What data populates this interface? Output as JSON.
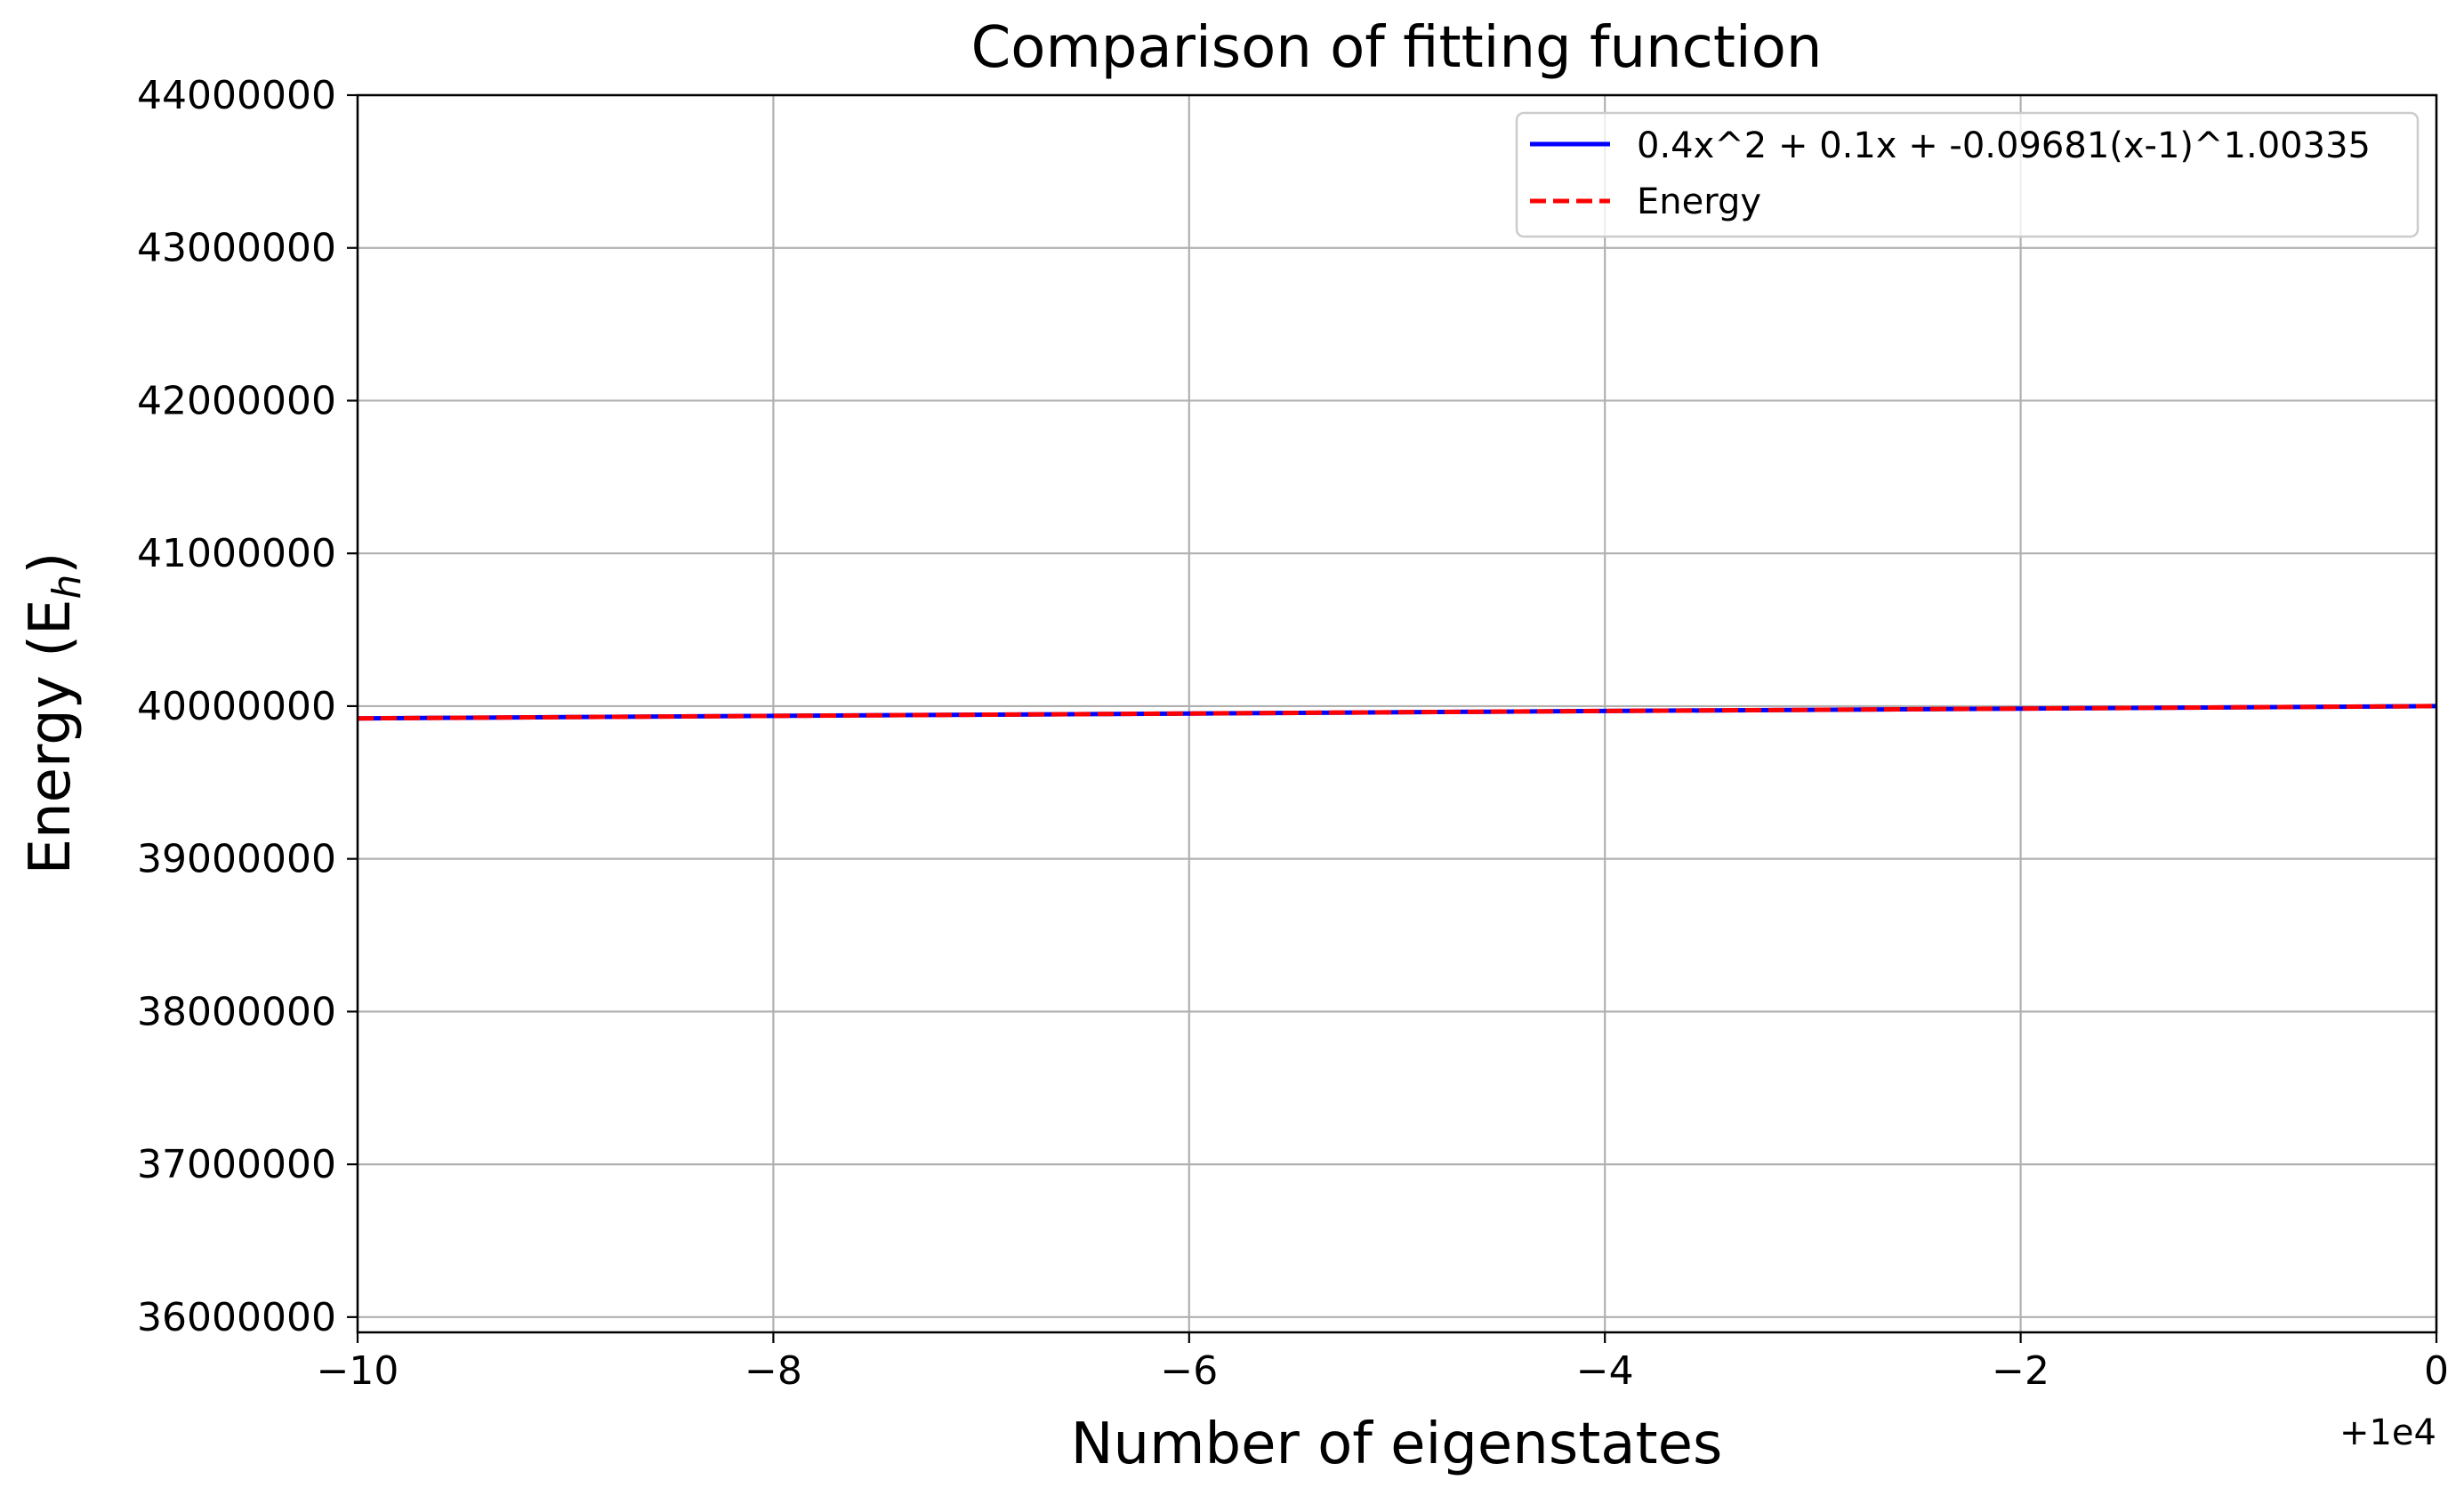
{
  "chart_data": {
    "type": "line",
    "title": "Comparison of fitting function",
    "xlabel": "Number of eigenstates",
    "ylabel_main": "Energy (E",
    "ylabel_sub": "h",
    "ylabel_close": ")",
    "x_offset_label": "+1e4",
    "xlim": [
      9990,
      10000
    ],
    "ylim": [
      35900000,
      44000000
    ],
    "x_ticks": [
      9990,
      9992,
      9994,
      9996,
      9998,
      10000
    ],
    "x_tick_labels": [
      "−10",
      "−8",
      "−6",
      "−4",
      "−2",
      "0"
    ],
    "y_ticks": [
      36000000,
      37000000,
      38000000,
      39000000,
      40000000,
      41000000,
      42000000,
      43000000,
      44000000
    ],
    "y_tick_labels": [
      "36000000",
      "37000000",
      "38000000",
      "39000000",
      "40000000",
      "41000000",
      "42000000",
      "43000000",
      "44000000"
    ],
    "grid": true,
    "legend_position": "top-right",
    "series": [
      {
        "name": "0.4x^2 + 0.1x + -0.09681(x-1)^1.00335",
        "color": "#0000ff",
        "style": "solid",
        "x": [
          9990,
          9992,
          9994,
          9996,
          9998,
          10000
        ],
        "y": [
          39920000,
          39936000,
          39952000,
          39968000,
          39984000,
          40000000
        ]
      },
      {
        "name": "Energy",
        "color": "#ff0000",
        "style": "dashed",
        "x": [
          9990,
          9992,
          9994,
          9996,
          9998,
          10000
        ],
        "y": [
          39920000,
          39936000,
          39952000,
          39968000,
          39984000,
          40000000
        ]
      }
    ]
  }
}
